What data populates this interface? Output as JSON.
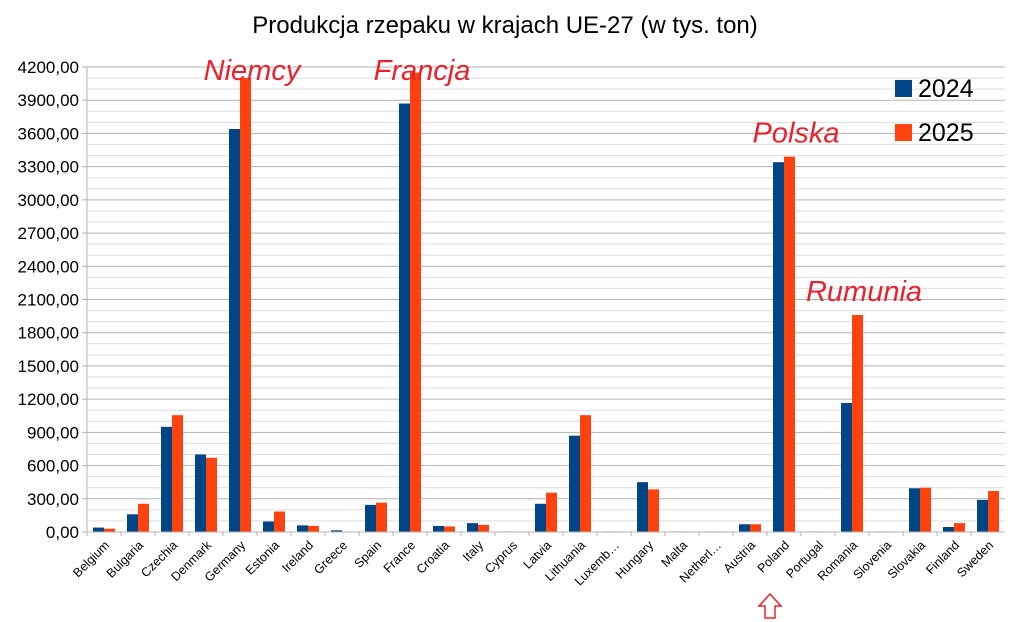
{
  "chart_data": {
    "type": "bar",
    "title": "Produkcja rzepaku w krajach UE-27 (w tys. ton)",
    "xlabel": "",
    "ylabel": "",
    "ylim": [
      0,
      4200
    ],
    "yticks": [
      "0,00",
      "300,00",
      "600,00",
      "900,00",
      "1200,00",
      "1500,00",
      "1800,00",
      "2100,00",
      "2400,00",
      "2700,00",
      "3000,00",
      "3300,00",
      "3600,00",
      "3900,00",
      "4200,00"
    ],
    "grid": true,
    "legend_position": "top-right",
    "categories": [
      "Belgium",
      "Bulgaria",
      "Czechia",
      "Denmark",
      "Germany",
      "Estonia",
      "Ireland",
      "Greece",
      "Spain",
      "France",
      "Croatia",
      "Italy",
      "Cyprus",
      "Latvia",
      "Lithuania",
      "Luxemb…",
      "Hungary",
      "Malta",
      "Netherl…",
      "Austria",
      "Poland",
      "Portugal",
      "Romania",
      "Slovenia",
      "Slovakia",
      "Finland",
      "Sweden"
    ],
    "series": [
      {
        "name": "2024",
        "color": "#004586",
        "values": [
          40,
          160,
          950,
          700,
          3640,
          95,
          60,
          15,
          245,
          3870,
          55,
          80,
          5,
          255,
          870,
          5,
          450,
          5,
          5,
          70,
          3340,
          5,
          1165,
          5,
          395,
          45,
          290
        ]
      },
      {
        "name": "2025",
        "color": "#ff420e",
        "values": [
          30,
          255,
          1055,
          670,
          4100,
          185,
          55,
          5,
          265,
          4150,
          50,
          65,
          5,
          355,
          1055,
          5,
          385,
          5,
          5,
          70,
          3390,
          5,
          1960,
          5,
          400,
          80,
          370
        ]
      }
    ],
    "annotations": [
      {
        "text": "Niemcy",
        "category": "Germany"
      },
      {
        "text": "Francja",
        "category": "France"
      },
      {
        "text": "Polska",
        "category": "Poland"
      },
      {
        "text": "Rumunia",
        "category": "Romania"
      }
    ],
    "marker": {
      "icon": "up-arrow-outline-icon",
      "category": "Poland",
      "color": "#e8232d"
    }
  }
}
